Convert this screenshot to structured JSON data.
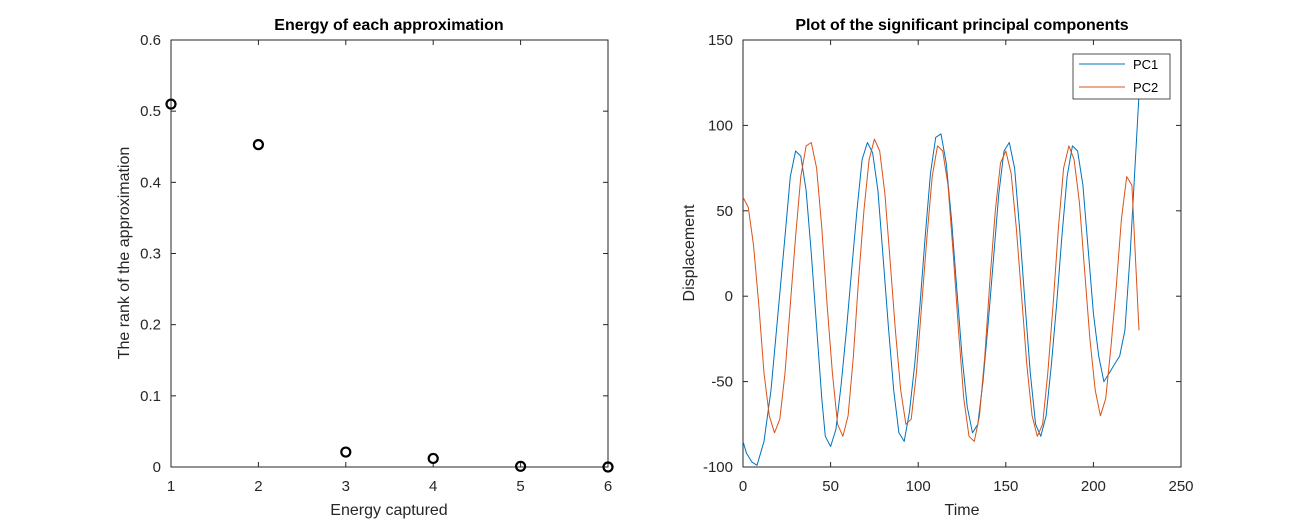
{
  "chart_data": [
    {
      "type": "scatter",
      "title": "Energy of each approximation",
      "xlabel": "Energy captured",
      "ylabel": "The rank of the approximation",
      "xlim": [
        1,
        6
      ],
      "ylim": [
        0,
        0.6
      ],
      "xticks": [
        "1",
        "2",
        "3",
        "4",
        "5",
        "6"
      ],
      "yticks": [
        "0",
        "0.1",
        "0.2",
        "0.3",
        "0.4",
        "0.5",
        "0.6"
      ],
      "grid": false,
      "marker": "circle",
      "color": "#000000",
      "x": [
        1,
        2,
        3,
        4,
        5,
        6
      ],
      "y": [
        0.51,
        0.453,
        0.021,
        0.012,
        0.001,
        0.0
      ]
    },
    {
      "type": "line",
      "title": "Plot of the significant principal components",
      "xlabel": "Time",
      "ylabel": "Displacement",
      "xlim": [
        0,
        250
      ],
      "ylim": [
        -100,
        150
      ],
      "xticks": [
        "0",
        "50",
        "100",
        "150",
        "200",
        "250"
      ],
      "yticks": [
        "-100",
        "-50",
        "0",
        "50",
        "100",
        "150"
      ],
      "grid": false,
      "legend_position": "top-right",
      "series": [
        {
          "name": "PC1",
          "color": "#0072BD",
          "x": [
            0,
            2,
            5,
            8,
            12,
            16,
            20,
            24,
            27,
            30,
            33,
            36,
            39,
            42,
            45,
            47,
            50,
            53,
            56,
            59,
            62,
            65,
            68,
            71,
            74,
            77,
            80,
            83,
            86,
            89,
            92,
            95,
            98,
            101,
            104,
            107,
            110,
            113,
            116,
            119,
            122,
            125,
            128,
            131,
            134,
            137,
            140,
            143,
            146,
            149,
            152,
            155,
            158,
            161,
            164,
            167,
            170,
            173,
            176,
            179,
            182,
            185,
            188,
            191,
            194,
            197,
            200,
            203,
            206,
            209,
            212,
            215,
            218,
            221,
            224,
            226
          ],
          "y": [
            -85,
            -92,
            -97,
            -99,
            -85,
            -55,
            -10,
            35,
            70,
            85,
            82,
            62,
            25,
            -18,
            -60,
            -82,
            -88,
            -78,
            -52,
            -20,
            15,
            50,
            80,
            90,
            84,
            62,
            22,
            -18,
            -55,
            -80,
            -85,
            -68,
            -40,
            -5,
            35,
            72,
            93,
            95,
            78,
            45,
            5,
            -35,
            -65,
            -80,
            -75,
            -50,
            -15,
            22,
            60,
            85,
            90,
            75,
            38,
            -5,
            -45,
            -75,
            -82,
            -70,
            -40,
            -5,
            35,
            70,
            88,
            85,
            65,
            28,
            -10,
            -35,
            -50,
            -45,
            -40,
            -35,
            -20,
            25,
            80,
            118
          ]
        },
        {
          "name": "PC2",
          "color": "#D95319",
          "x": [
            0,
            3,
            6,
            9,
            12,
            15,
            18,
            21,
            24,
            27,
            30,
            33,
            36,
            39,
            42,
            45,
            48,
            51,
            54,
            57,
            60,
            63,
            66,
            69,
            72,
            75,
            78,
            81,
            84,
            87,
            90,
            93,
            96,
            99,
            102,
            105,
            108,
            111,
            114,
            117,
            120,
            123,
            126,
            129,
            132,
            135,
            138,
            141,
            144,
            147,
            150,
            153,
            156,
            159,
            162,
            165,
            168,
            171,
            174,
            177,
            180,
            183,
            186,
            189,
            192,
            195,
            198,
            201,
            204,
            207,
            210,
            213,
            216,
            219,
            222,
            226
          ],
          "y": [
            58,
            52,
            30,
            -5,
            -45,
            -70,
            -80,
            -72,
            -45,
            -5,
            35,
            70,
            88,
            90,
            75,
            40,
            -5,
            -45,
            -75,
            -82,
            -70,
            -35,
            10,
            50,
            80,
            92,
            85,
            60,
            20,
            -20,
            -55,
            -75,
            -72,
            -45,
            -5,
            35,
            70,
            88,
            85,
            65,
            25,
            -20,
            -60,
            -82,
            -85,
            -70,
            -35,
            10,
            50,
            78,
            85,
            72,
            40,
            0,
            -40,
            -70,
            -82,
            -75,
            -45,
            -5,
            40,
            75,
            88,
            80,
            55,
            15,
            -25,
            -55,
            -70,
            -60,
            -30,
            5,
            45,
            70,
            65,
            -20
          ]
        }
      ]
    }
  ]
}
